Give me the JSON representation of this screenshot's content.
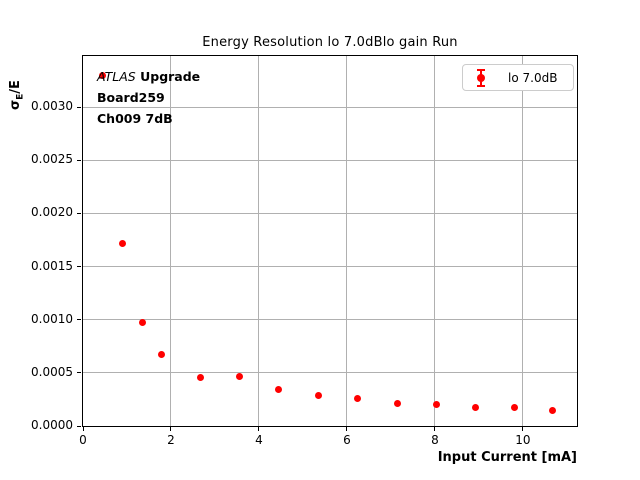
{
  "chart_data": {
    "type": "scatter",
    "title": "Energy Resolution lo 7.0dBlo gain Run",
    "xlabel": "Input Current [mA]",
    "ylabel": {
      "sigma": "σ",
      "subscript": "E",
      "rest": "/E"
    },
    "xlim": [
      0,
      11.23
    ],
    "ylim": [
      0,
      0.00348
    ],
    "xticks": [
      0,
      2,
      4,
      6,
      8,
      10
    ],
    "yticks": [
      0.0,
      0.0005,
      0.001,
      0.0015,
      0.002,
      0.0025,
      0.003
    ],
    "ytick_decimals": 4,
    "grid": true,
    "grid_color": "#b0b0b0",
    "background_color": "#ffffff",
    "series": [
      {
        "name": "lo 7.0dB",
        "marker": "circle-with-errorbar",
        "color": "#ff0000",
        "x": [
          0.45,
          0.89,
          1.35,
          1.78,
          2.68,
          3.56,
          4.45,
          5.36,
          6.25,
          7.15,
          8.03,
          8.93,
          9.81,
          10.68
        ],
        "y": [
          0.0033,
          0.00172,
          0.00097,
          0.00067,
          0.00046,
          0.00047,
          0.00034,
          0.00029,
          0.00026,
          0.00021,
          0.0002,
          0.000176,
          0.000172,
          0.000145
        ]
      }
    ],
    "legend": {
      "position": "upper right",
      "label": "lo 7.0dB"
    },
    "annotation": {
      "line1_italic": "ATLAS",
      "line1_bold": "Upgrade",
      "line2": "Board259",
      "line3": "Ch009 7dB"
    }
  }
}
